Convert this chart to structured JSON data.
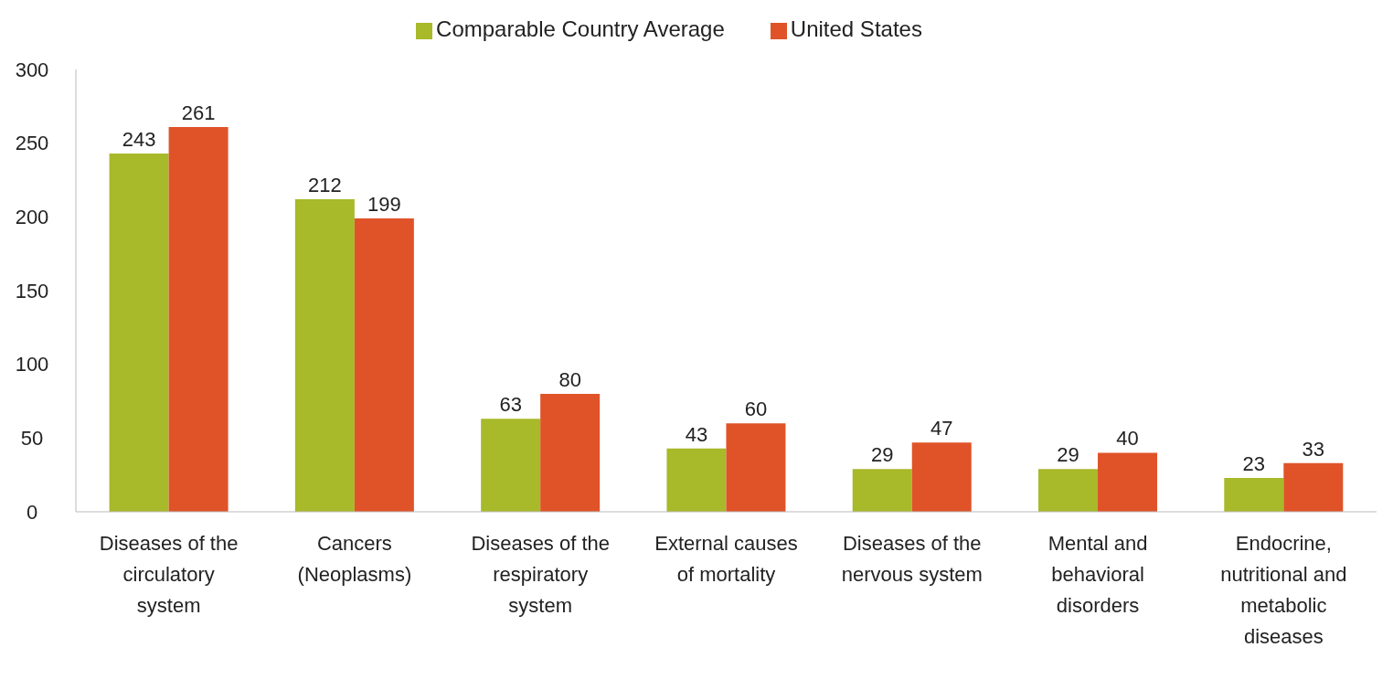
{
  "chart_data": {
    "type": "bar",
    "categories": [
      "Diseases of the circulatory system",
      "Cancers (Neoplasms)",
      "Diseases of the respiratory system",
      "External causes of mortality",
      "Diseases of the nervous system",
      "Mental and behavioral disorders",
      "Endocrine, nutritional and metabolic diseases"
    ],
    "series": [
      {
        "name": "Comparable Country Average",
        "color": "#a8b92a",
        "values": [
          243,
          212,
          63,
          43,
          29,
          29,
          23
        ]
      },
      {
        "name": "United States",
        "color": "#e05328",
        "values": [
          261,
          199,
          80,
          60,
          47,
          40,
          33
        ]
      }
    ],
    "ylim": [
      0,
      300
    ],
    "yticks": [
      0,
      50,
      100,
      150,
      200,
      250,
      300
    ],
    "grid": false,
    "legend": "top",
    "data_labels": true
  }
}
